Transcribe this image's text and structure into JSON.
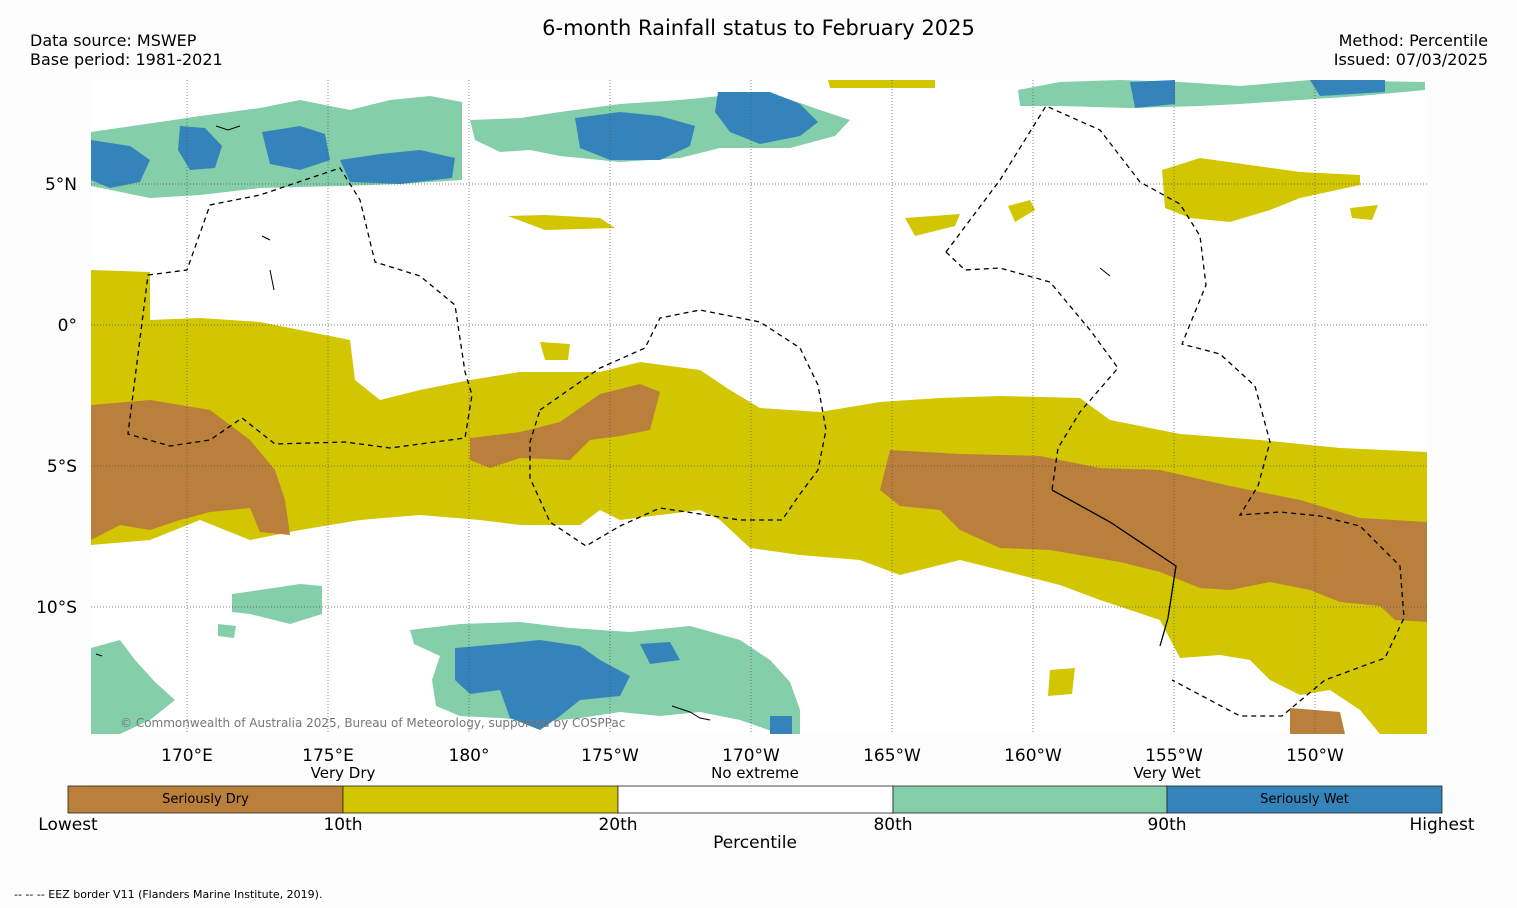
{
  "title": "6-month Rainfall status to February 2025",
  "header": {
    "data_source": "Data source: MSWEP",
    "base_period": "Base period: 1981-2021",
    "method": "Method: Percentile",
    "issued": "Issued: 07/03/2025"
  },
  "map": {
    "lat_labels": [
      "5°N",
      "0°",
      "5°S",
      "10°S"
    ],
    "lon_labels": [
      "170°E",
      "175°E",
      "180°",
      "175°W",
      "170°W",
      "165°W",
      "160°W",
      "155°W",
      "150°W"
    ],
    "copyright": "© Commonwealth of Australia 2025, Bureau of Meteorology, supported by COSPPac",
    "colors": {
      "seriously_dry": "#ba7f3b",
      "very_dry": "#d1c600",
      "no_extreme": "#ffffff",
      "very_wet": "#84ceaa",
      "seriously_wet": "#3484bb"
    }
  },
  "colorbar": {
    "top_labels": [
      "Very Dry",
      "No extreme",
      "Very Wet"
    ],
    "segment_labels": [
      "Seriously Dry",
      "",
      "",
      "",
      "Seriously Wet"
    ],
    "bottom_labels": [
      "Lowest",
      "10th",
      "20th",
      "80th",
      "90th",
      "Highest"
    ],
    "axis_title": "Percentile"
  },
  "footnote": "--  --  -- EEZ border V11 (Flanders Marine Institute, 2019)."
}
